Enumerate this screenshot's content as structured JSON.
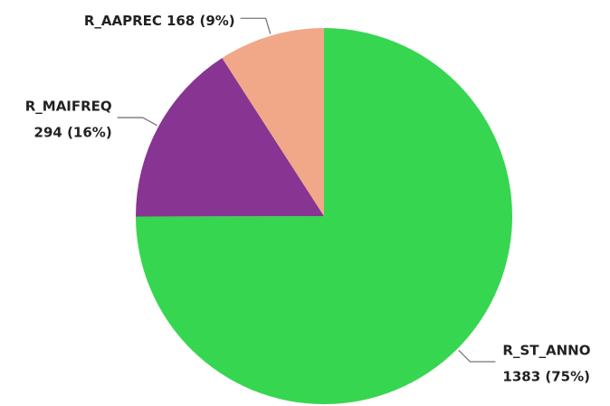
{
  "chart_data": {
    "type": "pie",
    "categories": [
      "R_ST_ANNO",
      "R_MAIFREQ",
      "R_AAPREC"
    ],
    "values": [
      1383,
      294,
      168
    ],
    "value_labels": [
      "1383 (75%)",
      "294 (16%)",
      "168 (9%)"
    ],
    "colors": [
      "#37d651",
      "#883492",
      "#f0a888"
    ]
  }
}
